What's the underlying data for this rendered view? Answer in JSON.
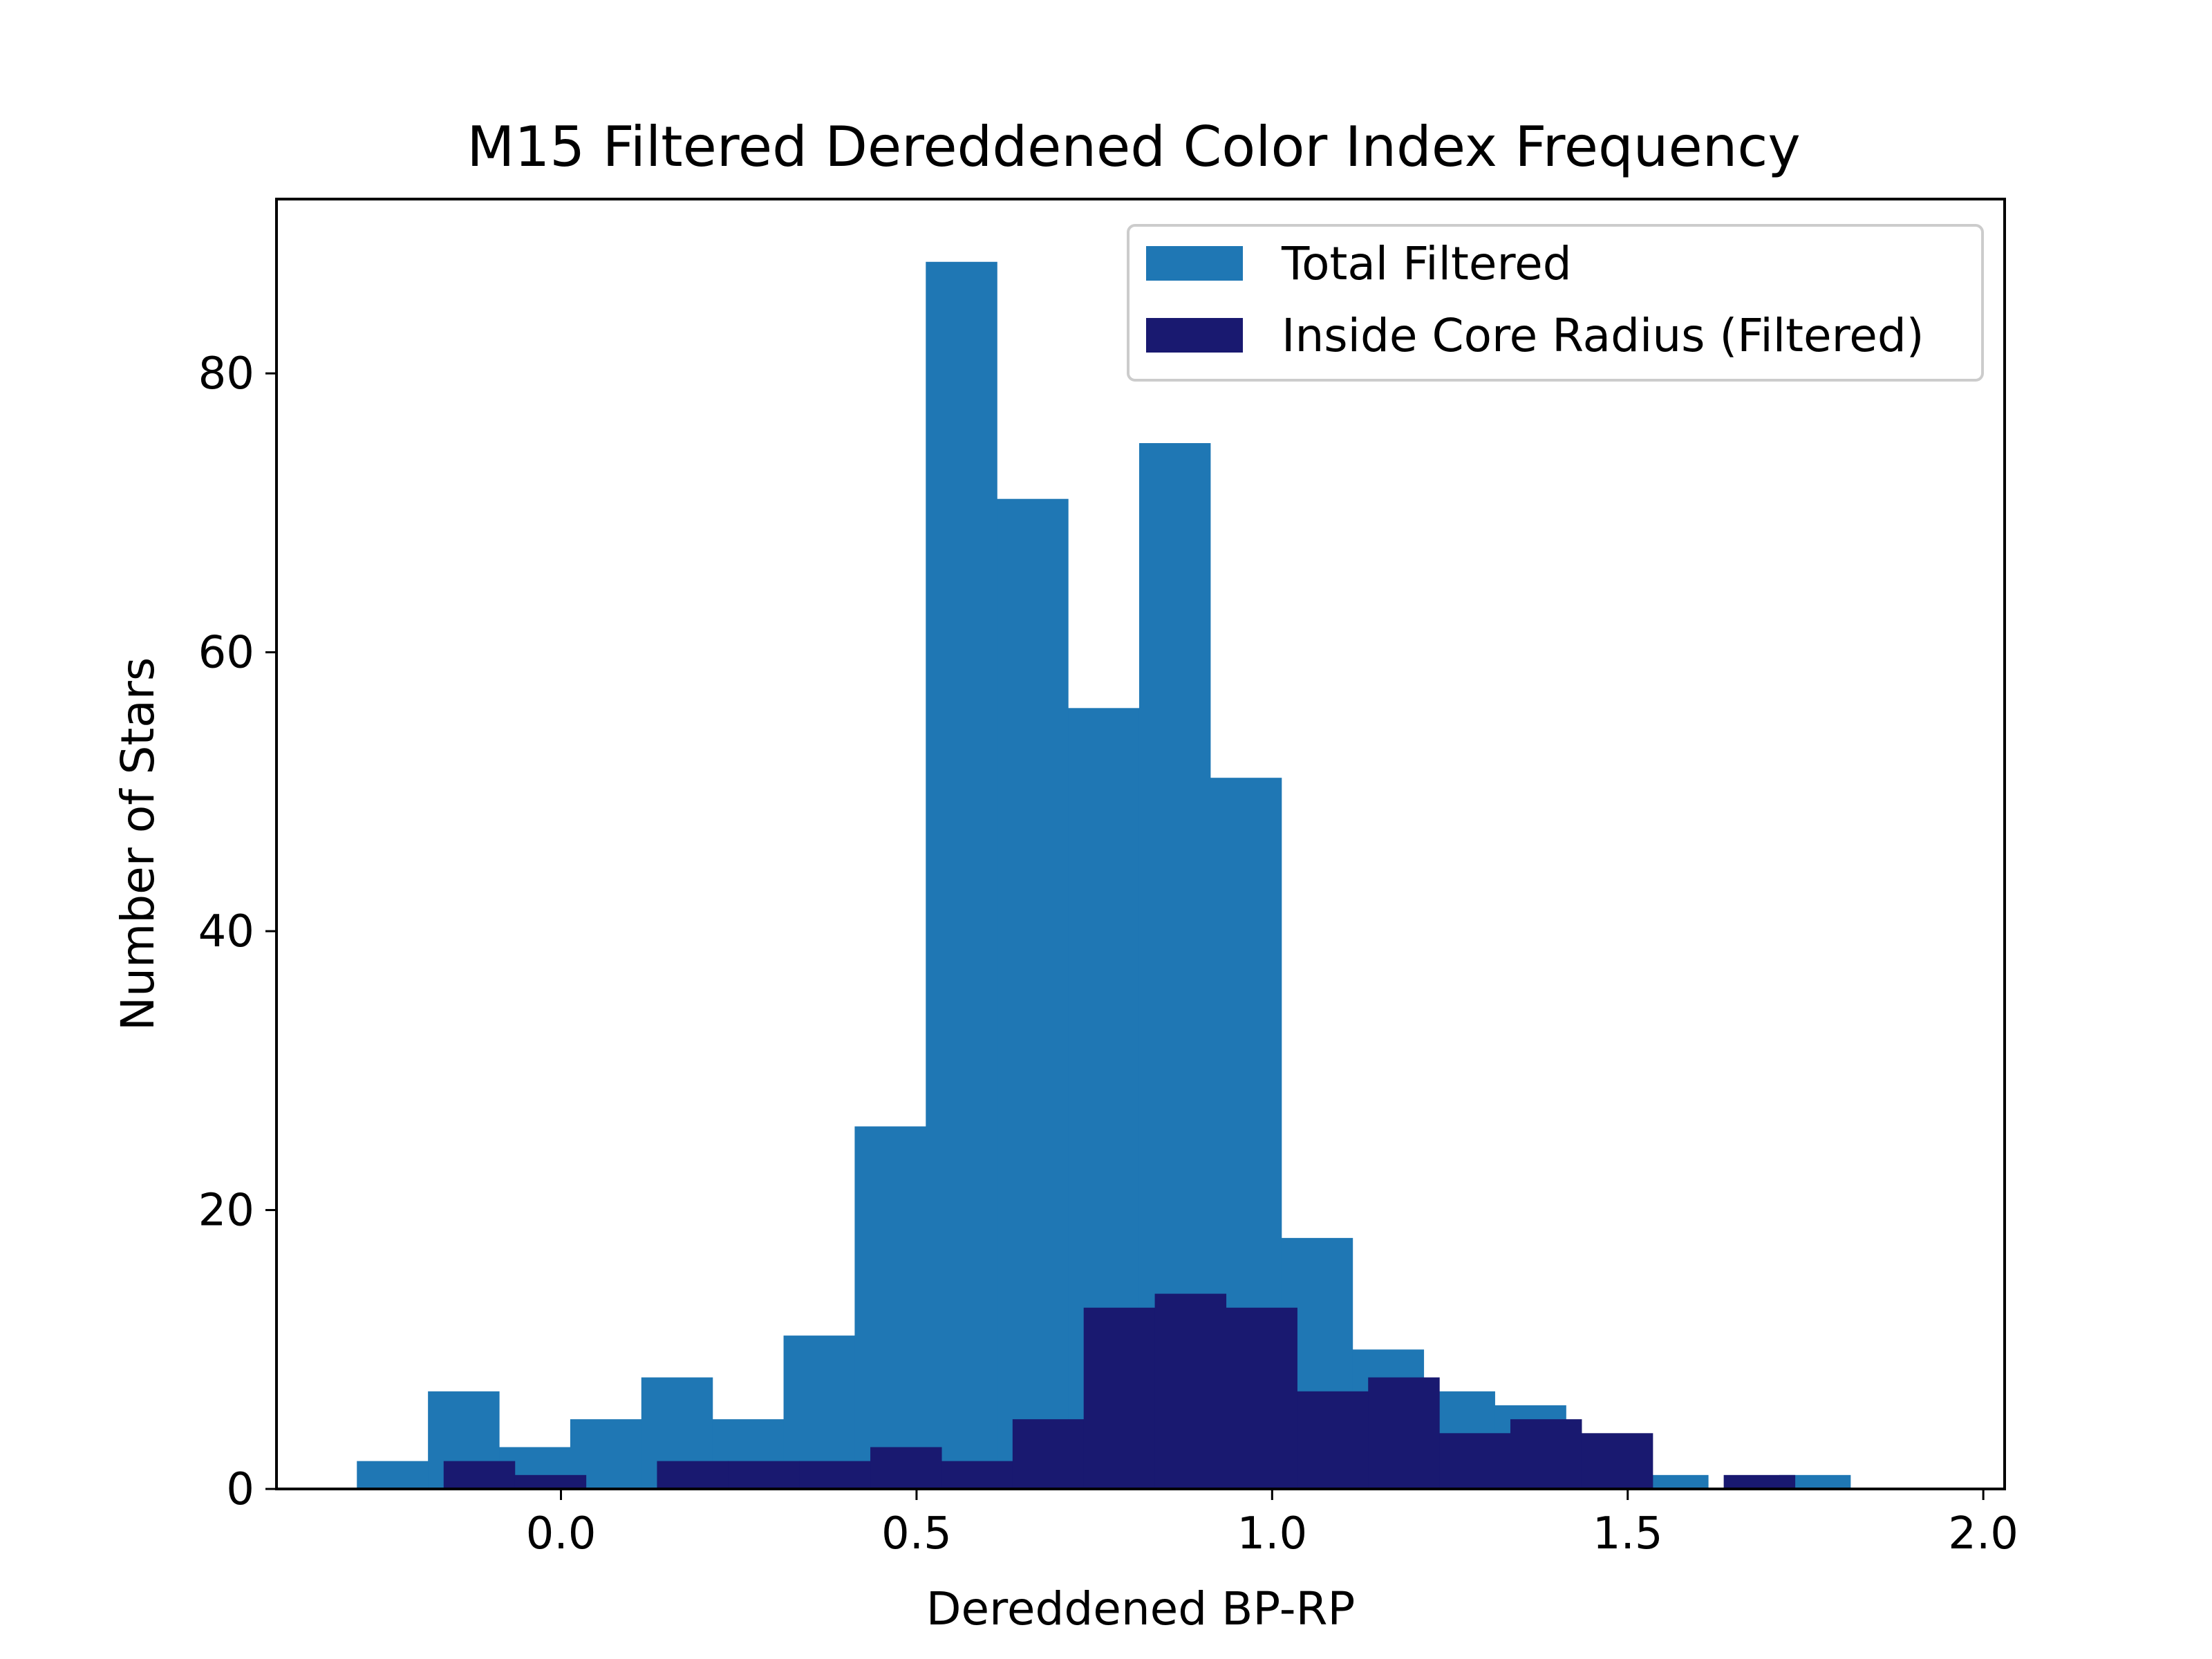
{
  "chart_data": {
    "type": "bar",
    "title": "M15 Filtered Dereddened Color Index Frequency",
    "xlabel": "Dereddened BP-RP",
    "ylabel": "Number of Stars",
    "xlim": [
      -0.4,
      2.03
    ],
    "ylim": [
      0,
      92.5
    ],
    "x_ticks": [
      "0.0",
      "0.5",
      "1.0",
      "1.5",
      "2.0"
    ],
    "y_ticks": [
      "0",
      "20",
      "40",
      "60",
      "80"
    ],
    "grid": false,
    "legend_position": "top-right",
    "series": [
      {
        "name": "Total Filtered",
        "color": "#1f77b4",
        "bin_start": -0.287,
        "bin_width": 0.1,
        "counts": [
          2,
          7,
          3,
          5,
          8,
          5,
          11,
          26,
          88,
          71,
          56,
          75,
          51,
          18,
          10,
          7,
          6,
          2,
          1,
          0,
          1
        ]
      },
      {
        "name": "Inside Core Radius (Filtered)",
        "color": "#191970",
        "bin_start": -0.165,
        "bin_width": 0.1,
        "counts": [
          2,
          1,
          0,
          2,
          2,
          2,
          3,
          2,
          5,
          13,
          14,
          13,
          7,
          8,
          4,
          5,
          4,
          0,
          1
        ]
      }
    ]
  }
}
